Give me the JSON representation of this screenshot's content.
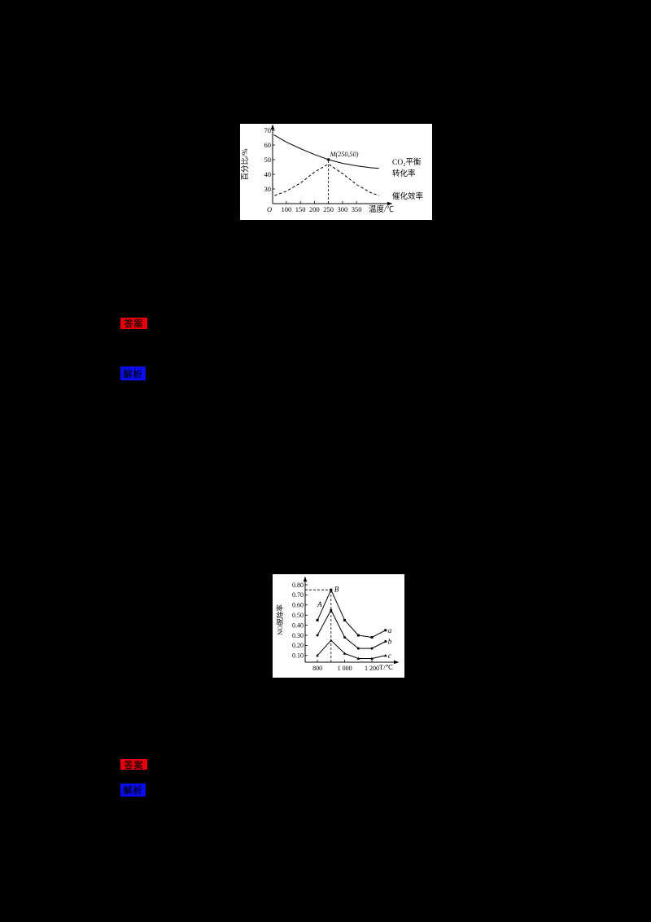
{
  "page": {
    "background_color": "#000000"
  },
  "chart_data": [
    {
      "id": "co2-equilibrium-conversion",
      "type": "line",
      "title": "",
      "ylabel": "百分比/%",
      "xlabel": "温度/℃",
      "origin_label": "O",
      "xlim": [
        51,
        400
      ],
      "ylim": [
        20,
        75
      ],
      "grid": false,
      "y_ticks": [
        70,
        60,
        50,
        40,
        30
      ],
      "y_tick_labels": [
        "70",
        "60",
        "50",
        "40",
        "30"
      ],
      "x_ticks": [
        100,
        150,
        200,
        250,
        300,
        350
      ],
      "x_tick_labels": [
        "100",
        "150",
        "200",
        "250",
        "300",
        "350"
      ],
      "series": [
        {
          "name": "CO₂平衡转化率",
          "label_lines": [
            "CO₂平衡",
            "转化率"
          ],
          "style": "solid",
          "x": [
            55,
            100,
            150,
            200,
            250,
            300,
            350,
            400,
            430
          ],
          "y": [
            67,
            62,
            57.5,
            53.5,
            50,
            47.5,
            45.8,
            44.5,
            44
          ]
        },
        {
          "name": "催化效率",
          "label_lines": [
            "催化效率"
          ],
          "style": "dashed",
          "x": [
            58,
            100,
            150,
            200,
            250,
            300,
            350,
            400,
            430
          ],
          "y": [
            25.5,
            28.5,
            34,
            41.5,
            47,
            40.5,
            33,
            27.5,
            25.5
          ]
        }
      ],
      "annotations": [
        {
          "text": "M(250,50)",
          "x": 250,
          "y": 50,
          "dot": true,
          "vguide": true
        }
      ],
      "guides": []
    },
    {
      "id": "no-removal-rate",
      "type": "line",
      "title": "",
      "ylabel": "NO脱除率",
      "xlabel": "T/℃",
      "origin_label": "",
      "xlim": [
        710,
        1380
      ],
      "ylim": [
        0.034,
        0.85
      ],
      "grid": false,
      "y_ticks": [
        0.8,
        0.7,
        0.6,
        0.5,
        0.4,
        0.3,
        0.2,
        0.1
      ],
      "y_tick_labels": [
        "0.80",
        "0.70",
        "0.60",
        "0.50",
        "0.40",
        "0.30",
        "0.20",
        "0.10"
      ],
      "x_ticks": [
        800,
        1000,
        1200
      ],
      "x_tick_labels": [
        "800",
        "1 000",
        "1 200"
      ],
      "series": [
        {
          "name": "a",
          "style": "solid",
          "marker": "square",
          "x": [
            800,
            900,
            1000,
            1100,
            1200,
            1300
          ],
          "y": [
            0.45,
            0.75,
            0.45,
            0.3,
            0.28,
            0.35
          ]
        },
        {
          "name": "b",
          "style": "solid",
          "marker": "circle",
          "x": [
            800,
            900,
            1000,
            1100,
            1200,
            1300
          ],
          "y": [
            0.3,
            0.55,
            0.28,
            0.17,
            0.17,
            0.24
          ]
        },
        {
          "name": "c",
          "style": "solid",
          "marker": "triangle",
          "x": [
            800,
            900,
            1000,
            1100,
            1200,
            1300
          ],
          "y": [
            0.1,
            0.25,
            0.12,
            0.07,
            0.07,
            0.1
          ]
        }
      ],
      "annotations": [
        {
          "text": "B",
          "x": 900,
          "y": 0.75
        },
        {
          "text": "A",
          "x": 818,
          "y": 0.6
        }
      ],
      "guides": [
        {
          "x": 900,
          "y": 0.75
        }
      ]
    }
  ],
  "badges": [
    {
      "label": "答案",
      "color": "#e8000d"
    },
    {
      "label": "解析",
      "color": "#0b0bef"
    },
    {
      "label": "答案",
      "color": "#e8000d"
    },
    {
      "label": "解析",
      "color": "#0b0bef"
    }
  ]
}
